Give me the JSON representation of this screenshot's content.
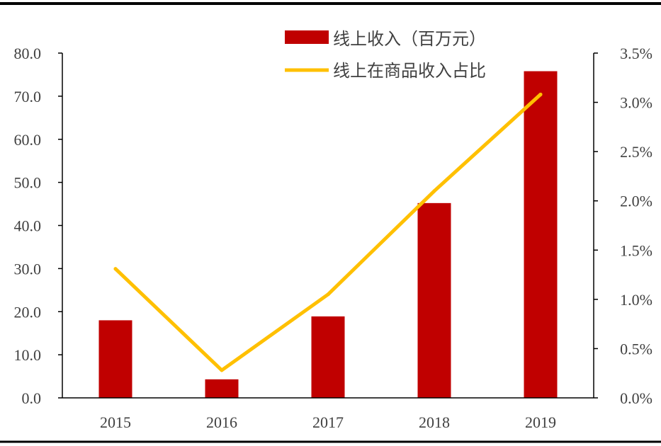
{
  "chart_data": {
    "type": "bar",
    "categories": [
      "2015",
      "2016",
      "2017",
      "2018",
      "2019"
    ],
    "series": [
      {
        "name": "线上收入（百万元）",
        "chart_type": "bar",
        "axis": "left",
        "color": "#C00000",
        "values": [
          18.0,
          4.3,
          18.9,
          45.2,
          75.8
        ]
      },
      {
        "name": "线上在商品收入占比",
        "chart_type": "line",
        "axis": "right",
        "color": "#FFC000",
        "values": [
          1.31,
          0.28,
          1.05,
          2.1,
          3.08
        ]
      }
    ],
    "y_left": {
      "ylim": [
        0,
        80
      ],
      "ticks": [
        "0.0",
        "10.0",
        "20.0",
        "30.0",
        "40.0",
        "50.0",
        "60.0",
        "70.0",
        "80.0"
      ]
    },
    "y_right": {
      "ylim": [
        0,
        3.5
      ],
      "ticks": [
        "0.0%",
        "0.5%",
        "1.0%",
        "1.5%",
        "2.0%",
        "2.5%",
        "3.0%",
        "3.5%"
      ]
    },
    "legend_position": "top-right",
    "grid": false
  }
}
